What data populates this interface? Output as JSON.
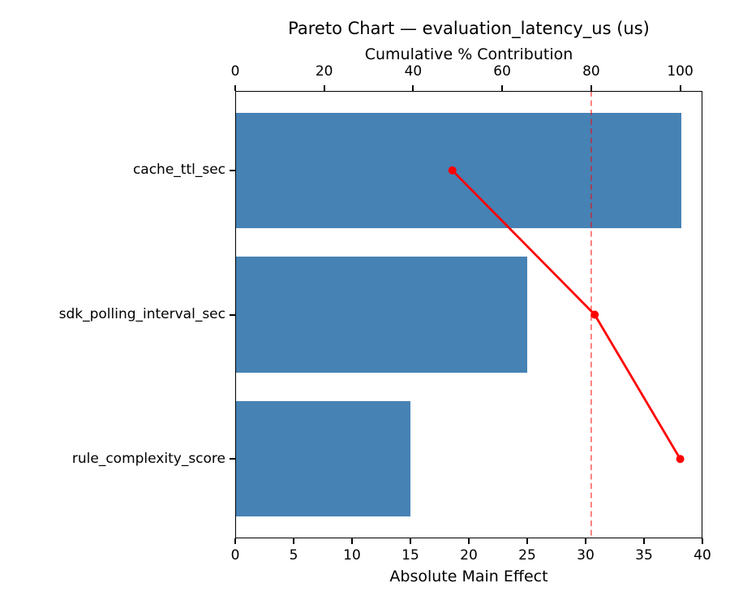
{
  "chart_data": {
    "type": "bar",
    "subtype": "pareto",
    "orientation": "horizontal",
    "title": "Pareto Chart — evaluation_latency_us (us)",
    "categories": [
      "cache_ttl_sec",
      "sdk_polling_interval_sec",
      "rule_complexity_score"
    ],
    "series": [
      {
        "name": "Absolute Main Effect",
        "type": "bar",
        "values": [
          38.2,
          25.0,
          15.0
        ],
        "color": "#4682b4"
      },
      {
        "name": "Cumulative % Contribution",
        "type": "line",
        "values": [
          48.8,
          80.8,
          100.0
        ],
        "color": "#ff0000"
      }
    ],
    "bottom_axis": {
      "label": "Absolute Main Effect",
      "range": [
        0,
        40
      ],
      "ticks": [
        0,
        5,
        10,
        15,
        20,
        25,
        30,
        35,
        40
      ]
    },
    "top_axis": {
      "label": "Cumulative % Contribution",
      "range": [
        0,
        105
      ],
      "ticks": [
        0,
        20,
        40,
        60,
        80,
        100
      ]
    },
    "reference_line": {
      "axis": "top",
      "value": 80,
      "style": "dashed",
      "color": "rgba(255,0,0,0.55)"
    },
    "colors": {
      "bar": "#4682b4",
      "line": "#ff0000",
      "text": "#000000",
      "spine": "#000000",
      "background": "#ffffff"
    },
    "layout_hints": {
      "grid": false,
      "legend": "none",
      "marker": "circle"
    }
  }
}
